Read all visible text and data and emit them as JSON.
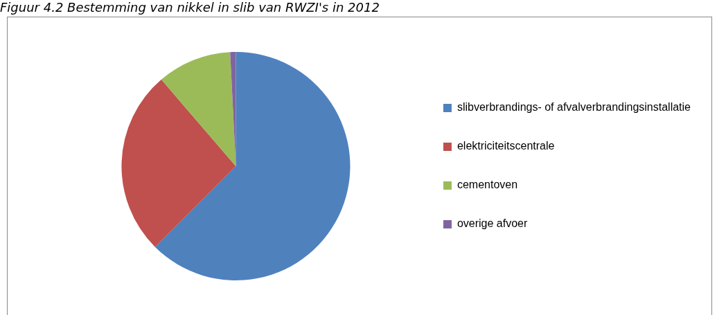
{
  "chart_data": {
    "type": "pie",
    "title": "Figuur 4.2 Bestemming van nikkel in slib van RWZI's in 2012",
    "categories": [
      "slibverbrandings- of afvalverbrandingsinstallatie",
      "elektriciteitscentrale",
      "cementoven",
      "overige afvoer"
    ],
    "values": [
      62.5,
      26.2,
      10.5,
      0.8
    ],
    "colors": [
      "#4f81bd",
      "#c0504d",
      "#9bbb59",
      "#8064a2"
    ],
    "legend": "right"
  }
}
